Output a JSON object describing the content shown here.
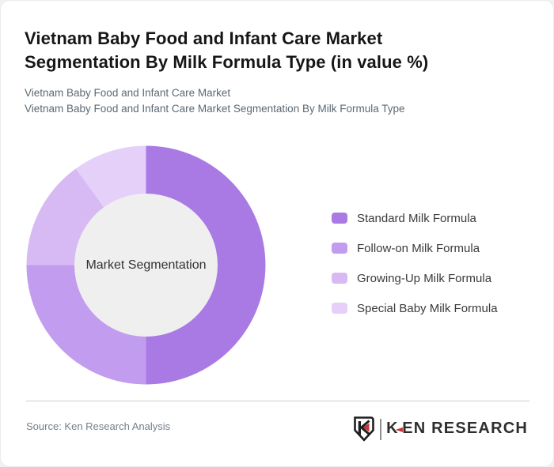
{
  "header": {
    "title": "Vietnam Baby Food and Infant Care Market Segmentation By Milk Formula Type (in value %)",
    "subtitle_line1": "Vietnam Baby Food and Infant Care Market",
    "subtitle_line2": "Vietnam Baby Food and Infant Care Market Segmentation By Milk Formula Type"
  },
  "chart_data": {
    "type": "pie",
    "variant": "donut",
    "title": "Vietnam Baby Food and Infant Care Market Segmentation By Milk Formula Type (in value %)",
    "center_label": "Market Segmentation",
    "categories": [
      "Standard Milk Formula",
      "Follow-on Milk Formula",
      "Growing-Up Milk Formula",
      "Special Baby Milk Formula"
    ],
    "values": [
      50,
      25,
      15,
      10
    ],
    "unit": "% of value (estimated from arc angles; no data labels shown)",
    "colors": [
      "#a97ae4",
      "#c19cef",
      "#d7baf3",
      "#e4d0f8"
    ],
    "hole_fill": "#efefef",
    "start_angle": "12 o'clock",
    "direction": "clockwise",
    "legend_position": "right",
    "data_labels_shown": false
  },
  "footer": {
    "source_text": "Source: Ken Research Analysis",
    "logo": {
      "shield_icon": "ken-research-shield-icon",
      "k": "K",
      "arrow": "◄",
      "rest": "EN RESEARCH"
    }
  }
}
